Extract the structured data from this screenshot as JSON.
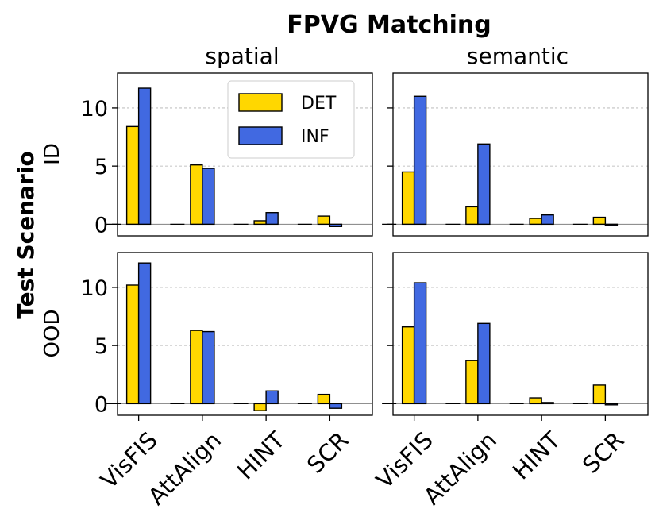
{
  "chart_data": {
    "type": "bar",
    "title": "FPVG Matching",
    "ylabel": "Test Scenario",
    "columns": [
      "spatial",
      "semantic"
    ],
    "rows": [
      "ID",
      "OOD"
    ],
    "categories": [
      "VisFIS",
      "AttAlign",
      "HINT",
      "SCR"
    ],
    "legend": {
      "position": "top-right",
      "entries": [
        "DET",
        "INF"
      ]
    },
    "colors": {
      "DET": "#FFD700",
      "INF": "#4169E1",
      "edge": "#000000"
    },
    "ylim": [
      -1,
      13
    ],
    "yticks": [
      0,
      5,
      10
    ],
    "grid": "horizontal-dashed",
    "panels": [
      {
        "row": "ID",
        "column": "spatial",
        "series": [
          {
            "name": "DET",
            "values": [
              8.4,
              5.1,
              0.3,
              0.7
            ]
          },
          {
            "name": "INF",
            "values": [
              11.7,
              4.8,
              1.0,
              -0.2
            ]
          }
        ]
      },
      {
        "row": "ID",
        "column": "semantic",
        "series": [
          {
            "name": "DET",
            "values": [
              4.5,
              1.5,
              0.5,
              0.6
            ]
          },
          {
            "name": "INF",
            "values": [
              11.0,
              6.9,
              0.8,
              -0.1
            ]
          }
        ]
      },
      {
        "row": "OOD",
        "column": "spatial",
        "series": [
          {
            "name": "DET",
            "values": [
              10.2,
              6.3,
              -0.6,
              0.8
            ]
          },
          {
            "name": "INF",
            "values": [
              12.1,
              6.2,
              1.1,
              -0.4
            ]
          }
        ]
      },
      {
        "row": "OOD",
        "column": "semantic",
        "series": [
          {
            "name": "DET",
            "values": [
              6.6,
              3.7,
              0.5,
              1.6
            ]
          },
          {
            "name": "INF",
            "values": [
              10.4,
              6.9,
              0.1,
              -0.1
            ]
          }
        ]
      }
    ]
  }
}
